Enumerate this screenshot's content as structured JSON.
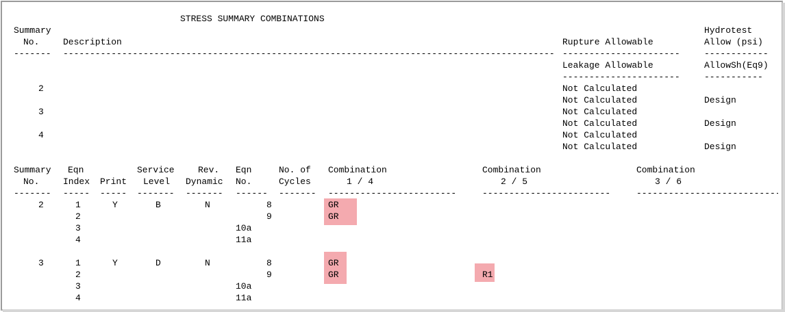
{
  "title": "STRESS SUMMARY COMBINATIONS",
  "top_headers": {
    "summary_no_1": "Summary",
    "summary_no_2": "No.",
    "description": "Description",
    "rupture_allowable": "Rupture Allowable",
    "hydrotest_1": "Hydrotest",
    "hydrotest_2": "Allow (psi)",
    "leakage_allowable": "Leakage Allowable",
    "allowsh": "AllowSh(Eq9)"
  },
  "rules": {
    "short": "-------",
    "description": "-----------------------------------------------------------------------------------------------",
    "rupture": "----------------------",
    "hydro": "------------",
    "leakage": "----------------------",
    "allowsh": "-----------"
  },
  "top_rows": [
    {
      "no": "2",
      "rupture": "Not Calculated",
      "leakage": "Not Calculated",
      "hydro": "Design"
    },
    {
      "no": "3",
      "rupture": "Not Calculated",
      "leakage": "Not Calculated",
      "hydro": "Design"
    },
    {
      "no": "4",
      "rupture": "Not Calculated",
      "leakage": "Not Calculated",
      "hydro": "Design"
    }
  ],
  "bottom_headers": {
    "summary_1": "Summary",
    "summary_2": "No.",
    "eqn_1": "Eqn",
    "eqn_2": "Index",
    "print": "Print",
    "service_1": "Service",
    "service_2": "Level",
    "rev_1": "Rev.",
    "rev_2": "Dynamic",
    "eqnno_1": "Eqn",
    "eqnno_2": "No.",
    "cycles_1": "No. of",
    "cycles_2": "Cycles",
    "comb1_1": "Combination",
    "comb1_2": "1 / 4",
    "comb2_1": "Combination",
    "comb2_2": "2 / 5",
    "comb3_1": "Combination",
    "comb3_2": "3 / 6"
  },
  "bottom_rules": {
    "summary": "-------",
    "eqn": "-----",
    "print": "-----",
    "service": "-------",
    "rev": "-------",
    "eqnno": "------",
    "cycles": "-------",
    "comb": "------------------------",
    "comb3": "-----------------------------"
  },
  "groups": [
    {
      "summary_no": "2",
      "print": "Y",
      "service_level": "B",
      "rev_dynamic": "N",
      "rows": [
        {
          "index": "1",
          "eqn_no": "8",
          "comb1": "GR",
          "comb2": ""
        },
        {
          "index": "2",
          "eqn_no": "9",
          "comb1": "GR",
          "comb2": ""
        },
        {
          "index": "3",
          "eqn_no": "10a",
          "comb1": "",
          "comb2": ""
        },
        {
          "index": "4",
          "eqn_no": "11a",
          "comb1": "",
          "comb2": ""
        }
      ]
    },
    {
      "summary_no": "3",
      "print": "Y",
      "service_level": "D",
      "rev_dynamic": "N",
      "rows": [
        {
          "index": "1",
          "eqn_no": "8",
          "comb1": "GR",
          "comb2": ""
        },
        {
          "index": "2",
          "eqn_no": "9",
          "comb1": "GR",
          "comb2": "R1"
        },
        {
          "index": "3",
          "eqn_no": "10a",
          "comb1": "",
          "comb2": ""
        },
        {
          "index": "4",
          "eqn_no": "11a",
          "comb1": "",
          "comb2": ""
        }
      ]
    }
  ],
  "colors": {
    "highlight": "#f4aaaf",
    "border": "#9a9a9a"
  }
}
